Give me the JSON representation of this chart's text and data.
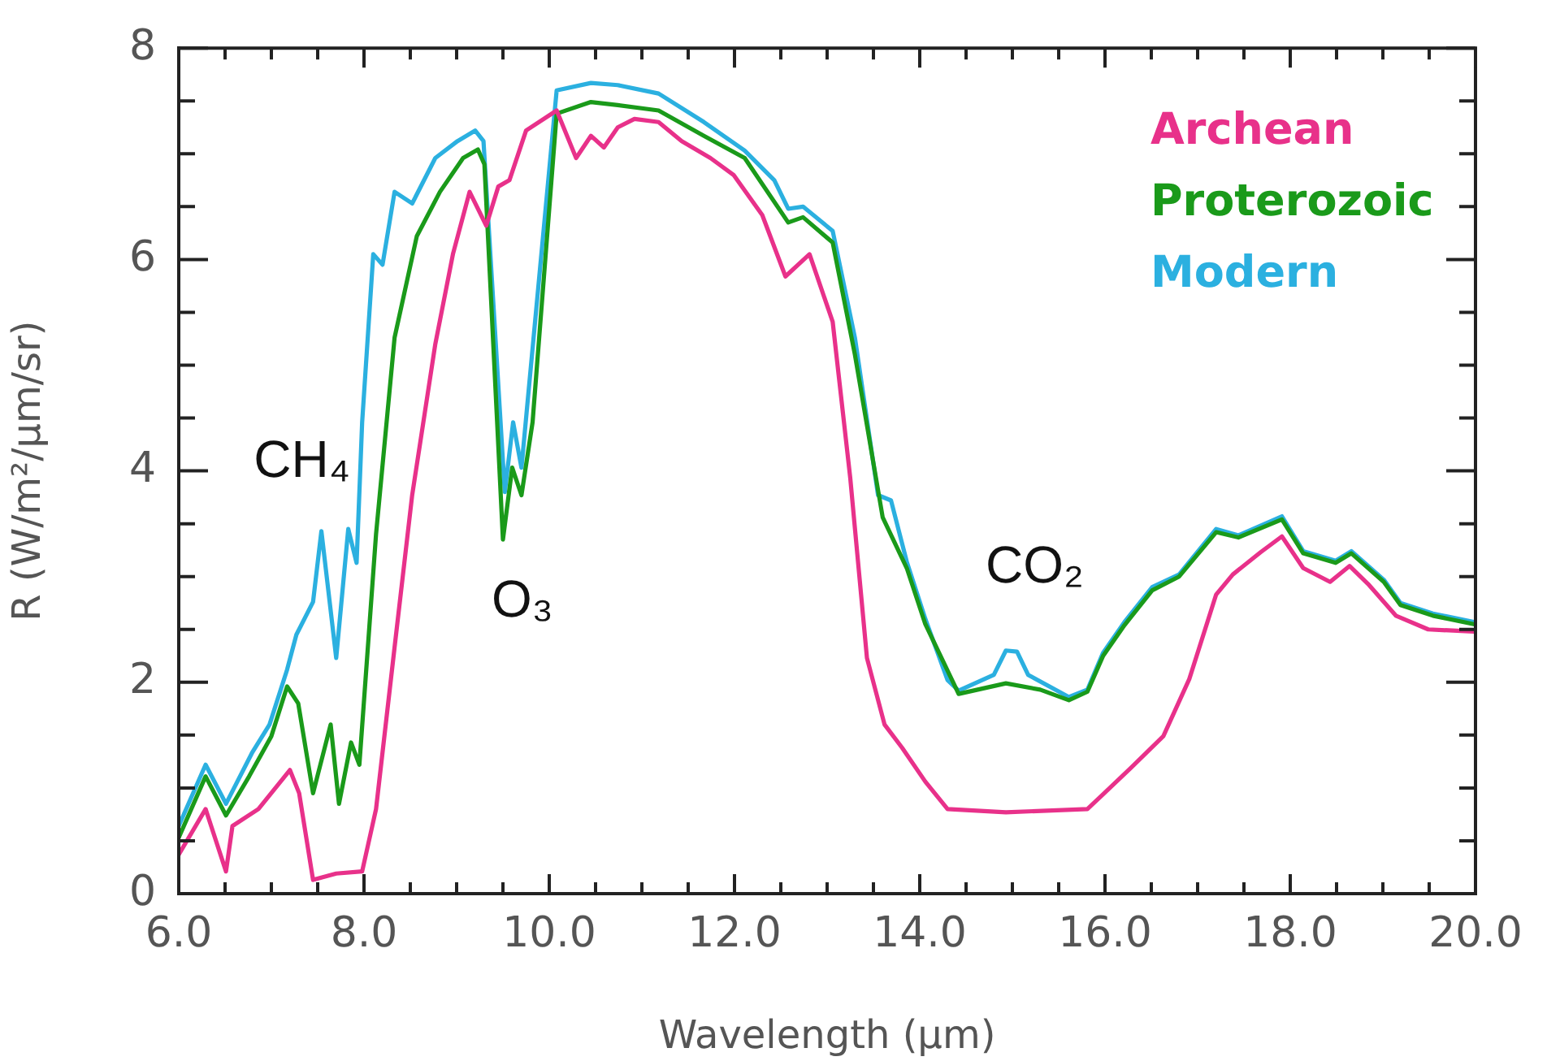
{
  "chart_data": {
    "type": "line",
    "xlabel": "Wavelength (μm)",
    "ylabel": "R (W/m²/μm/sr)",
    "xlim": [
      6,
      20
    ],
    "ylim": [
      0,
      8
    ],
    "xticks": [
      {
        "value": 6,
        "label": "6.0"
      },
      {
        "value": 6.5,
        "label": null
      },
      {
        "value": 7,
        "label": null
      },
      {
        "value": 7.5,
        "label": null
      },
      {
        "value": 8,
        "label": "8.0"
      },
      {
        "value": 8.5,
        "label": null
      },
      {
        "value": 9,
        "label": null
      },
      {
        "value": 9.5,
        "label": null
      },
      {
        "value": 10,
        "label": "10.0"
      },
      {
        "value": 10.5,
        "label": null
      },
      {
        "value": 11,
        "label": null
      },
      {
        "value": 11.5,
        "label": null
      },
      {
        "value": 12,
        "label": "12.0"
      },
      {
        "value": 12.5,
        "label": null
      },
      {
        "value": 13,
        "label": null
      },
      {
        "value": 13.5,
        "label": null
      },
      {
        "value": 14,
        "label": "14.0"
      },
      {
        "value": 14.5,
        "label": null
      },
      {
        "value": 15,
        "label": null
      },
      {
        "value": 15.5,
        "label": null
      },
      {
        "value": 16,
        "label": "16.0"
      },
      {
        "value": 16.5,
        "label": null
      },
      {
        "value": 17,
        "label": null
      },
      {
        "value": 17.5,
        "label": null
      },
      {
        "value": 18,
        "label": "18.0"
      },
      {
        "value": 18.5,
        "label": null
      },
      {
        "value": 19,
        "label": null
      },
      {
        "value": 19.5,
        "label": null
      },
      {
        "value": 20,
        "label": "20.0"
      }
    ],
    "yticks": [
      0,
      {
        "value": 0.5,
        "label": null
      },
      {
        "value": 1,
        "label": null
      },
      {
        "value": 1.5,
        "label": null
      },
      2,
      {
        "value": 2.5,
        "label": null
      },
      {
        "value": 3,
        "label": null
      },
      {
        "value": 3.5,
        "label": null
      },
      4,
      {
        "value": 4.5,
        "label": null
      },
      {
        "value": 5,
        "label": null
      },
      {
        "value": 5.5,
        "label": null
      },
      6,
      {
        "value": 6.5,
        "label": null
      },
      {
        "value": 7,
        "label": null
      },
      {
        "value": 7.5,
        "label": null
      },
      8
    ],
    "grid": false,
    "legend": "top right",
    "marker": "none",
    "line_style": "solid",
    "annotations": [
      "CH₄",
      "O₃",
      "CO₂"
    ],
    "series": [
      {
        "name": "Archean",
        "color": "#e8318a",
        "x": [
          6.0,
          6.29,
          6.51,
          6.58,
          6.86,
          7.2,
          7.3,
          7.45,
          7.7,
          7.98,
          8.13,
          8.33,
          8.52,
          8.77,
          8.96,
          9.14,
          9.32,
          9.45,
          9.57,
          9.75,
          10.08,
          10.29,
          10.45,
          10.59,
          10.74,
          10.92,
          11.18,
          11.43,
          11.74,
          11.99,
          12.3,
          12.55,
          12.81,
          13.06,
          13.25,
          13.43,
          13.62,
          13.81,
          14.06,
          14.3,
          14.93,
          15.81,
          15.98,
          16.28,
          16.63,
          16.91,
          17.2,
          17.38,
          17.68,
          17.91,
          18.14,
          18.43,
          18.64,
          18.84,
          19.14,
          19.49,
          19.98
        ],
        "values": [
          0.37,
          0.8,
          0.21,
          0.64,
          0.8,
          1.17,
          0.95,
          0.13,
          0.19,
          0.21,
          0.8,
          2.33,
          3.77,
          5.2,
          6.05,
          6.64,
          6.32,
          6.69,
          6.75,
          7.22,
          7.41,
          6.96,
          7.17,
          7.06,
          7.25,
          7.33,
          7.3,
          7.12,
          6.96,
          6.8,
          6.42,
          5.84,
          6.05,
          5.41,
          3.93,
          2.23,
          1.6,
          1.38,
          1.06,
          0.8,
          0.77,
          0.8,
          0.94,
          1.19,
          1.49,
          2.03,
          2.83,
          3.02,
          3.23,
          3.38,
          3.08,
          2.95,
          3.1,
          2.93,
          2.63,
          2.5,
          2.48
        ]
      },
      {
        "name": "Proterozoic",
        "color": "#1a9a1a",
        "x": [
          6.0,
          6.29,
          6.51,
          6.76,
          7.0,
          7.17,
          7.29,
          7.45,
          7.64,
          7.73,
          7.86,
          7.95,
          8.13,
          8.33,
          8.57,
          8.82,
          9.07,
          9.23,
          9.3,
          9.5,
          9.6,
          9.7,
          9.82,
          10.08,
          10.45,
          10.74,
          11.18,
          11.67,
          12.11,
          12.58,
          12.74,
          13.06,
          13.3,
          13.6,
          13.86,
          14.06,
          14.42,
          14.93,
          15.3,
          15.61,
          15.81,
          15.98,
          16.21,
          16.51,
          16.8,
          17.2,
          17.44,
          17.91,
          18.14,
          18.49,
          18.66,
          19.01,
          19.19,
          19.54,
          19.98
        ],
        "values": [
          0.53,
          1.11,
          0.74,
          1.11,
          1.49,
          1.96,
          1.8,
          0.95,
          1.6,
          0.85,
          1.43,
          1.22,
          3.4,
          5.26,
          6.22,
          6.64,
          6.96,
          7.04,
          6.9,
          3.35,
          4.03,
          3.77,
          4.46,
          7.38,
          7.49,
          7.46,
          7.41,
          7.17,
          6.96,
          6.35,
          6.4,
          6.16,
          5.1,
          3.56,
          3.08,
          2.55,
          1.89,
          1.99,
          1.93,
          1.83,
          1.91,
          2.25,
          2.54,
          2.87,
          3.0,
          3.42,
          3.37,
          3.54,
          3.22,
          3.13,
          3.22,
          2.95,
          2.73,
          2.63,
          2.55
        ]
      },
      {
        "name": "Modern",
        "color": "#2bb0e0",
        "x": [
          6.0,
          6.29,
          6.51,
          6.79,
          6.98,
          7.17,
          7.27,
          7.45,
          7.54,
          7.7,
          7.83,
          7.92,
          7.98,
          8.1,
          8.2,
          8.33,
          8.52,
          8.77,
          9.01,
          9.2,
          9.29,
          9.52,
          9.61,
          9.7,
          10.08,
          10.45,
          10.74,
          11.18,
          11.67,
          12.11,
          12.43,
          12.58,
          12.74,
          13.06,
          13.3,
          13.55,
          13.69,
          13.86,
          14.06,
          14.3,
          14.42,
          14.8,
          14.93,
          15.05,
          15.17,
          15.61,
          15.81,
          15.98,
          16.21,
          16.51,
          16.8,
          17.2,
          17.44,
          17.91,
          18.14,
          18.49,
          18.66,
          19.01,
          19.19,
          19.54,
          19.98
        ],
        "values": [
          0.64,
          1.22,
          0.85,
          1.33,
          1.6,
          2.12,
          2.45,
          2.76,
          3.43,
          2.23,
          3.45,
          3.13,
          4.46,
          6.05,
          5.95,
          6.64,
          6.53,
          6.96,
          7.12,
          7.22,
          7.12,
          3.8,
          4.46,
          4.03,
          7.6,
          7.67,
          7.65,
          7.57,
          7.3,
          7.03,
          6.75,
          6.48,
          6.5,
          6.27,
          5.26,
          3.77,
          3.72,
          3.14,
          2.6,
          2.02,
          1.92,
          2.07,
          2.3,
          2.29,
          2.07,
          1.86,
          1.93,
          2.28,
          2.57,
          2.9,
          3.02,
          3.45,
          3.39,
          3.57,
          3.24,
          3.15,
          3.24,
          2.97,
          2.75,
          2.65,
          2.57
        ]
      }
    ]
  }
}
